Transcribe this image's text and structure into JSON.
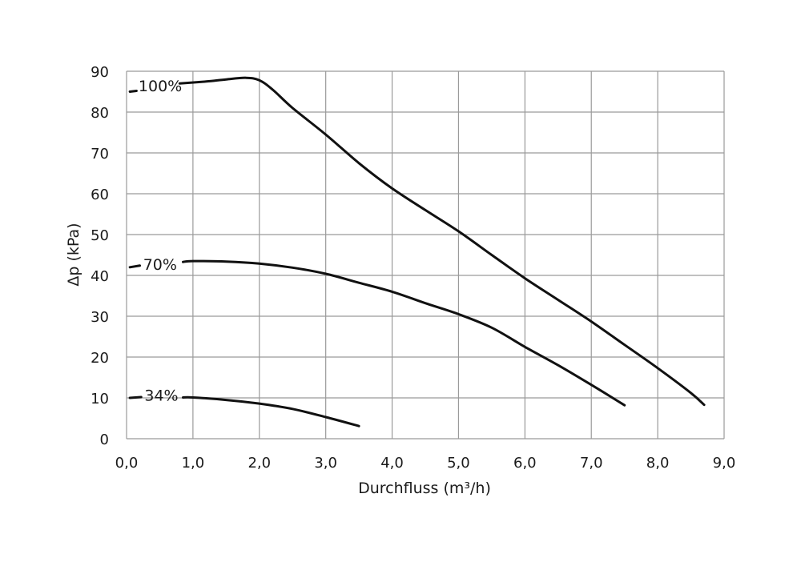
{
  "chart_data": {
    "type": "line",
    "title": "",
    "xlabel": "Durchfluss (m³/h)",
    "ylabel": "Δp (kPa)",
    "xlim": [
      0,
      9
    ],
    "ylim": [
      0,
      90
    ],
    "xticks": [
      "0,0",
      "1,0",
      "2,0",
      "3,0",
      "4,0",
      "5,0",
      "6,0",
      "7,0",
      "8,0",
      "9,0"
    ],
    "yticks": [
      "0",
      "10",
      "20",
      "30",
      "40",
      "50",
      "60",
      "70",
      "80",
      "90"
    ],
    "grid": true,
    "line_color": "#111111",
    "grid_color": "#9a9a9a",
    "series": [
      {
        "name": "100%",
        "points": [
          [
            0.8,
            87.0
          ],
          [
            1.2,
            87.5
          ],
          [
            1.5,
            88.0
          ],
          [
            1.8,
            88.4
          ],
          [
            2.0,
            87.8
          ],
          [
            2.2,
            85.5
          ],
          [
            2.5,
            81.0
          ],
          [
            3.0,
            74.5
          ],
          [
            3.5,
            67.5
          ],
          [
            4.0,
            61.3
          ],
          [
            4.5,
            56.0
          ],
          [
            5.0,
            50.8
          ],
          [
            5.5,
            45.0
          ],
          [
            6.0,
            39.3
          ],
          [
            6.5,
            34.0
          ],
          [
            7.0,
            28.7
          ],
          [
            7.5,
            23.0
          ],
          [
            8.0,
            17.3
          ],
          [
            8.5,
            11.2
          ],
          [
            8.7,
            8.3
          ]
        ],
        "leader": [
          [
            0.05,
            85.0
          ],
          [
            0.15,
            85.2
          ]
        ],
        "label_at": [
          0.18,
          86.5
        ]
      },
      {
        "name": "70%",
        "points": [
          [
            0.85,
            43.3
          ],
          [
            1.0,
            43.5
          ],
          [
            1.5,
            43.4
          ],
          [
            2.0,
            42.9
          ],
          [
            2.5,
            41.9
          ],
          [
            3.0,
            40.4
          ],
          [
            3.5,
            38.2
          ],
          [
            4.0,
            36.0
          ],
          [
            4.5,
            33.2
          ],
          [
            5.0,
            30.5
          ],
          [
            5.5,
            27.2
          ],
          [
            6.0,
            22.5
          ],
          [
            6.5,
            18.0
          ],
          [
            7.0,
            13.2
          ],
          [
            7.5,
            8.2
          ]
        ],
        "leader": [
          [
            0.05,
            42.0
          ],
          [
            0.2,
            42.4
          ]
        ],
        "label_at": [
          0.25,
          42.7
        ]
      },
      {
        "name": "34%",
        "points": [
          [
            0.85,
            10.1
          ],
          [
            1.0,
            10.1
          ],
          [
            1.5,
            9.5
          ],
          [
            2.0,
            8.6
          ],
          [
            2.5,
            7.3
          ],
          [
            3.0,
            5.3
          ],
          [
            3.5,
            3.1
          ]
        ],
        "leader": [
          [
            0.05,
            10.0
          ],
          [
            0.22,
            10.2
          ]
        ],
        "label_at": [
          0.27,
          10.7
        ]
      }
    ]
  }
}
